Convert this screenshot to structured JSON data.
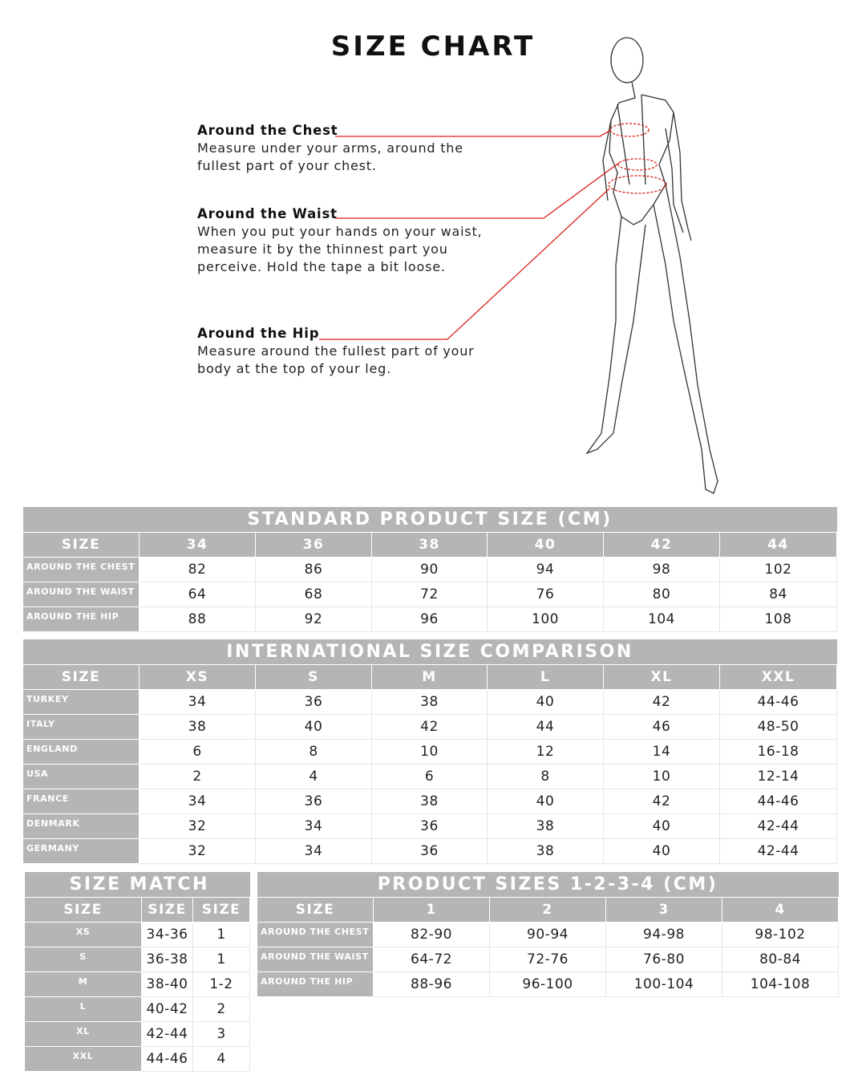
{
  "title": "SIZE CHART",
  "measurements": [
    {
      "heading": "Around the Chest",
      "lines": [
        "Measure under your arms, around the",
        "fullest part of your chest."
      ]
    },
    {
      "heading": "Around the Waist",
      "lines": [
        "When you put your hands on your waist,",
        "measure it by the thinnest part you",
        "perceive. Hold the tape a bit loose."
      ]
    },
    {
      "heading": "Around the Hip",
      "lines": [
        "Measure around the fullest part of your",
        "body at the top of your leg."
      ]
    }
  ],
  "accent_color": "#d9201c",
  "header_color": "#b5b5b5",
  "standard": {
    "title": "STANDARD PRODUCT SIZE (CM)",
    "header": [
      "SIZE",
      "34",
      "36",
      "38",
      "40",
      "42",
      "44"
    ],
    "rows": [
      [
        "AROUND THE CHEST",
        "82",
        "86",
        "90",
        "94",
        "98",
        "102"
      ],
      [
        "AROUND THE WAIST",
        "64",
        "68",
        "72",
        "76",
        "80",
        "84"
      ],
      [
        "AROUND THE HIP",
        "88",
        "92",
        "96",
        "100",
        "104",
        "108"
      ]
    ]
  },
  "international": {
    "title": "INTERNATIONAL SIZE COMPARISON",
    "header": [
      "SIZE",
      "XS",
      "S",
      "M",
      "L",
      "XL",
      "XXL"
    ],
    "rows": [
      [
        "TURKEY",
        "34",
        "36",
        "38",
        "40",
        "42",
        "44-46"
      ],
      [
        "ITALY",
        "38",
        "40",
        "42",
        "44",
        "46",
        "48-50"
      ],
      [
        "ENGLAND",
        "6",
        "8",
        "10",
        "12",
        "14",
        "16-18"
      ],
      [
        "USA",
        "2",
        "4",
        "6",
        "8",
        "10",
        "12-14"
      ],
      [
        "FRANCE",
        "34",
        "36",
        "38",
        "40",
        "42",
        "44-46"
      ],
      [
        "DENMARK",
        "32",
        "34",
        "36",
        "38",
        "40",
        "42-44"
      ],
      [
        "GERMANY",
        "32",
        "34",
        "36",
        "38",
        "40",
        "42-44"
      ]
    ]
  },
  "size_match": {
    "title": "SIZE MATCH",
    "header": [
      "SIZE",
      "SIZE",
      "SIZE"
    ],
    "rows": [
      [
        "XS",
        "34-36",
        "1"
      ],
      [
        "S",
        "36-38",
        "1"
      ],
      [
        "M",
        "38-40",
        "1-2"
      ],
      [
        "L",
        "40-42",
        "2"
      ],
      [
        "XL",
        "42-44",
        "3"
      ],
      [
        "XXL",
        "44-46",
        "4"
      ]
    ]
  },
  "product": {
    "title": "PRODUCT SIZES 1-2-3-4 (CM)",
    "header": [
      "SIZE",
      "1",
      "2",
      "3",
      "4"
    ],
    "rows": [
      [
        "AROUND THE CHEST",
        "82-90",
        "90-94",
        "94-98",
        "98-102"
      ],
      [
        "AROUND THE WAIST",
        "64-72",
        "72-76",
        "76-80",
        "80-84"
      ],
      [
        "AROUND THE HIP",
        "88-96",
        "96-100",
        "100-104",
        "104-108"
      ]
    ]
  }
}
